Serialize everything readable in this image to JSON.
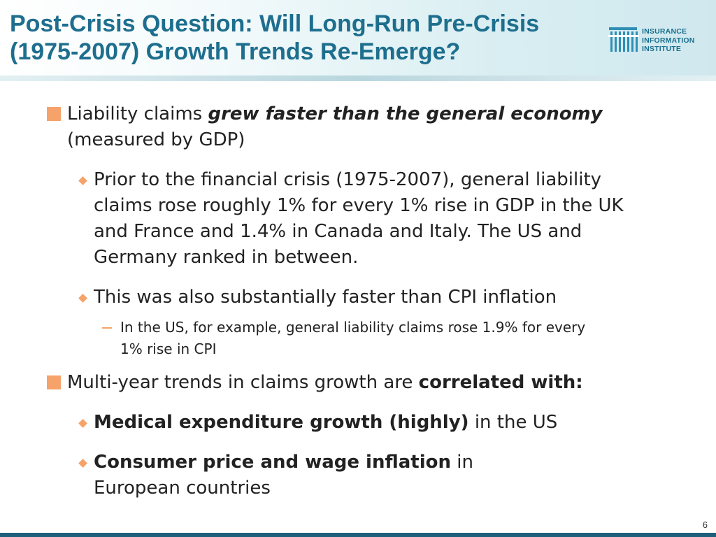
{
  "slide": {
    "title_line1": "Post-Crisis Question: Will Long-Run Pre-Crisis",
    "title_line2": "(1975-2007) Growth Trends Re-Emerge?",
    "logo": {
      "line1": "INSURANCE",
      "line2": "INFORMATION",
      "line3": "INSTITUTE"
    },
    "page_number": "6",
    "colors": {
      "title": "#1e6e8e",
      "bullet": "#f5a36a",
      "footer_bar": "#1e5f7a"
    }
  },
  "bullets": {
    "b1": {
      "text_a": "Liability claims ",
      "text_emph": "grew faster than the general economy",
      "text_b": "(measured by GDP)"
    },
    "b1_1": {
      "line1": "Prior to the financial crisis (1975-2007), general liability",
      "line2": "claims rose roughly 1% for every 1% rise in GDP in the UK",
      "line3": "and France and 1.4% in Canada and Italy. The US and",
      "line4": "Germany ranked in between."
    },
    "b1_2": {
      "text": "This was also substantially faster than CPI inflation"
    },
    "b1_2_1": {
      "line1": "In the US, for example, general liability claims rose 1.9% for every",
      "line2": "1% rise in CPI"
    },
    "b2": {
      "text_a": "Multi-year trends in claims growth are ",
      "text_bold": "correlated with:"
    },
    "b2_1": {
      "text_bold": "Medical expenditure growth (highly)",
      "text_b": " in the US"
    },
    "b2_2": {
      "text_bold": "Consumer price and wage inflation",
      "text_b": " in",
      "line2": "European countries"
    }
  }
}
